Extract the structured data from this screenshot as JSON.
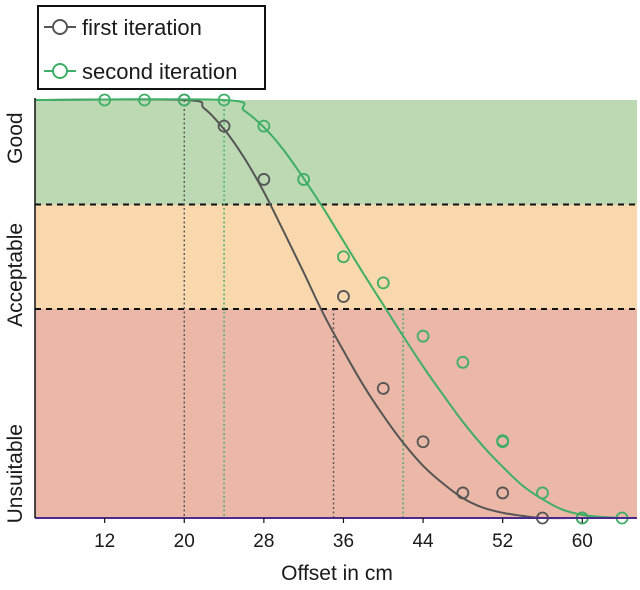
{
  "chart_data": {
    "type": "line",
    "title": "",
    "xlabel": "Offset in cm",
    "ylabel": "",
    "xlim": [
      5,
      65.5
    ],
    "ylim": [
      0,
      4
    ],
    "xticks": [
      12,
      20,
      28,
      36,
      44,
      52,
      60
    ],
    "bands": [
      {
        "name": "Good",
        "from": 3,
        "to": 4,
        "color": "#bcd9b3"
      },
      {
        "name": "Acceptable",
        "from": 2,
        "to": 3,
        "color": "#f8d8ac"
      },
      {
        "name": "Unsuitable",
        "from": 0,
        "to": 2,
        "color": "#ebb8a7"
      }
    ],
    "ylevel_labels": [
      "Good",
      "Acceptable",
      "Unsuitable"
    ],
    "thresholds": [
      2,
      3
    ],
    "series": [
      {
        "name": "first iteration",
        "color": "#555555",
        "points": [
          {
            "x": 20,
            "y": 4.0
          },
          {
            "x": 24,
            "y": 3.75
          },
          {
            "x": 28,
            "y": 3.24
          },
          {
            "x": 36,
            "y": 2.12
          },
          {
            "x": 40,
            "y": 1.24
          },
          {
            "x": 44,
            "y": 0.73
          },
          {
            "x": 48,
            "y": 0.24
          },
          {
            "x": 52,
            "y": 0.24
          },
          {
            "x": 56,
            "y": 0.0
          },
          {
            "x": 60,
            "y": 0.0
          }
        ],
        "curve": [
          [
            5,
            4.0
          ],
          [
            20,
            4.0
          ],
          [
            22,
            3.92
          ],
          [
            24,
            3.72
          ],
          [
            26,
            3.45
          ],
          [
            28,
            3.12
          ],
          [
            30,
            2.74
          ],
          [
            32,
            2.35
          ],
          [
            34,
            1.95
          ],
          [
            36,
            1.6
          ],
          [
            38,
            1.27
          ],
          [
            40,
            0.98
          ],
          [
            42,
            0.72
          ],
          [
            44,
            0.5
          ],
          [
            46,
            0.33
          ],
          [
            48,
            0.19
          ],
          [
            50,
            0.1
          ],
          [
            52,
            0.05
          ],
          [
            54,
            0.02
          ],
          [
            56,
            0.0
          ],
          [
            60,
            0.0
          ]
        ],
        "crossing_x": [
          20,
          35
        ]
      },
      {
        "name": "second iteration",
        "color": "#3fae66",
        "points": [
          {
            "x": 12,
            "y": 4.0
          },
          {
            "x": 16,
            "y": 4.0
          },
          {
            "x": 20,
            "y": 4.0
          },
          {
            "x": 24,
            "y": 4.0
          },
          {
            "x": 28,
            "y": 3.75
          },
          {
            "x": 32,
            "y": 3.24
          },
          {
            "x": 36,
            "y": 2.5
          },
          {
            "x": 40,
            "y": 2.25
          },
          {
            "x": 44,
            "y": 1.74
          },
          {
            "x": 48,
            "y": 1.49
          },
          {
            "x": 52,
            "y": 0.73
          },
          {
            "x": 52,
            "y": 0.74
          },
          {
            "x": 56,
            "y": 0.24
          },
          {
            "x": 60,
            "y": 0.0
          },
          {
            "x": 64,
            "y": 0.0
          }
        ],
        "curve": [
          [
            5,
            4.0
          ],
          [
            24,
            4.0
          ],
          [
            26,
            3.9
          ],
          [
            28,
            3.74
          ],
          [
            30,
            3.52
          ],
          [
            32,
            3.25
          ],
          [
            34,
            2.96
          ],
          [
            36,
            2.65
          ],
          [
            38,
            2.34
          ],
          [
            40,
            2.04
          ],
          [
            42,
            1.74
          ],
          [
            44,
            1.45
          ],
          [
            46,
            1.18
          ],
          [
            48,
            0.92
          ],
          [
            50,
            0.69
          ],
          [
            52,
            0.49
          ],
          [
            54,
            0.31
          ],
          [
            56,
            0.18
          ],
          [
            58,
            0.08
          ],
          [
            60,
            0.03
          ],
          [
            62,
            0.01
          ],
          [
            64,
            0.0
          ]
        ],
        "crossing_x": [
          24,
          42
        ]
      }
    ],
    "legend": {
      "placement": "top-left",
      "entries": [
        "first iteration",
        "second iteration"
      ]
    }
  }
}
